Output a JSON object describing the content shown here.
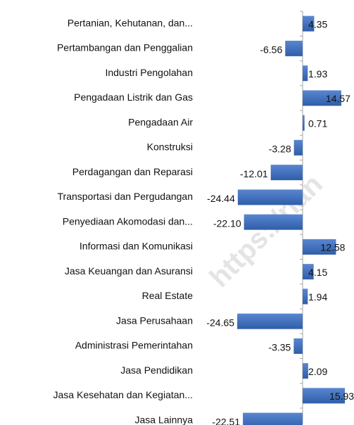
{
  "chart_data": {
    "type": "bar",
    "orientation": "horizontal",
    "categories": [
      "Pertanian, Kehutanan, dan...",
      "Pertambangan dan Penggalian",
      "Industri Pengolahan",
      "Pengadaan Listrik dan Gas",
      "Pengadaan Air",
      "Konstruksi",
      "Perdagangan dan Reparasi",
      "Transportasi dan Pergudangan",
      "Penyediaan Akomodasi dan...",
      "Informasi dan Komunikasi",
      "Jasa Keuangan dan Asuransi",
      "Real Estate",
      "Jasa Perusahaan",
      "Administrasi Pemerintahan",
      "Jasa Pendidikan",
      "Jasa Kesehatan dan Kegiatan...",
      "Jasa Lainnya"
    ],
    "values": [
      4.35,
      -6.56,
      1.93,
      14.57,
      0.71,
      -3.28,
      -12.01,
      -24.44,
      -22.1,
      12.58,
      4.15,
      1.94,
      -24.65,
      -3.35,
      2.09,
      15.93,
      -22.51
    ],
    "value_labels": [
      "4.35",
      "-6.56",
      "1.93",
      "14.57",
      "0.71",
      "-3.28",
      "-12.01",
      "-24.44",
      "-22.10",
      "12.58",
      "4.15",
      "1.94",
      "-24.65",
      "-3.35",
      "2.09",
      "15.93",
      "-22.51"
    ],
    "color": "#3f6fc0",
    "watermark": "https://rian"
  }
}
